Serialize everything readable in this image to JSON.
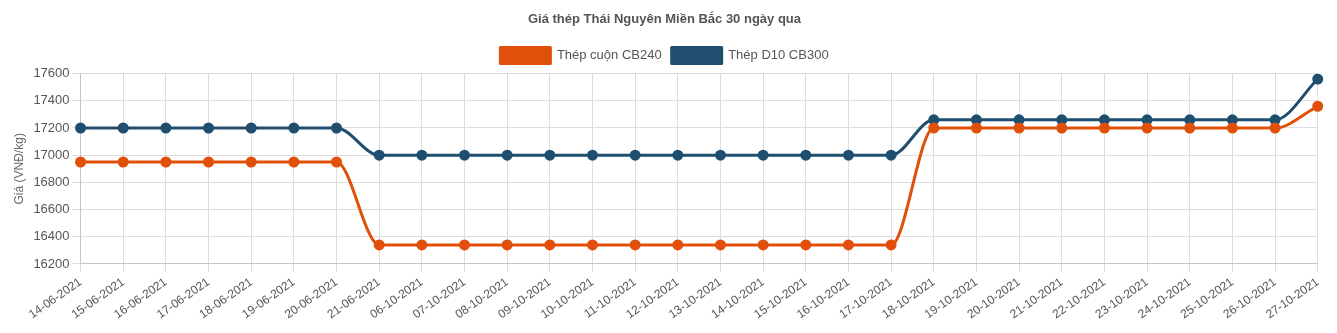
{
  "chart_data": {
    "type": "line",
    "title": "Giá thép Thái Nguyên Miền Bắc 30 ngày qua",
    "ylabel": "Giá (VNĐ/kg)",
    "categories": [
      "14-06-2021",
      "15-06-2021",
      "16-06-2021",
      "17-06-2021",
      "18-06-2021",
      "19-06-2021",
      "20-06-2021",
      "21-06-2021",
      "06-10-2021",
      "07-10-2021",
      "08-10-2021",
      "09-10-2021",
      "10-10-2021",
      "11-10-2021",
      "12-10-2021",
      "13-10-2021",
      "14-10-2021",
      "15-10-2021",
      "16-10-2021",
      "17-10-2021",
      "18-10-2021",
      "19-10-2021",
      "20-10-2021",
      "21-10-2021",
      "22-10-2021",
      "23-10-2021",
      "24-10-2021",
      "25-10-2021",
      "26-10-2021",
      "27-10-2021"
    ],
    "series": [
      {
        "name": "Thép cuộn CB240",
        "color": "#e0500b",
        "values": [
          16950,
          16950,
          16950,
          16950,
          16950,
          16950,
          16950,
          16340,
          16340,
          16340,
          16340,
          16340,
          16340,
          16340,
          16340,
          16340,
          16340,
          16340,
          16340,
          16340,
          17200,
          17200,
          17200,
          17200,
          17200,
          17200,
          17200,
          17200,
          17200,
          17360
        ]
      },
      {
        "name": "Thép D10 CB300",
        "color": "#1f4e70",
        "values": [
          17200,
          17200,
          17200,
          17200,
          17200,
          17200,
          17200,
          17000,
          17000,
          17000,
          17000,
          17000,
          17000,
          17000,
          17000,
          17000,
          17000,
          17000,
          17000,
          17000,
          17260,
          17260,
          17260,
          17260,
          17260,
          17260,
          17260,
          17260,
          17260,
          17560
        ]
      }
    ],
    "ylim": [
      16200,
      17600
    ],
    "yticks": [
      16200,
      16400,
      16600,
      16800,
      17000,
      17200,
      17400,
      17600
    ],
    "grid": true,
    "legend": "top",
    "marker": "circle",
    "line_style": "solid"
  }
}
